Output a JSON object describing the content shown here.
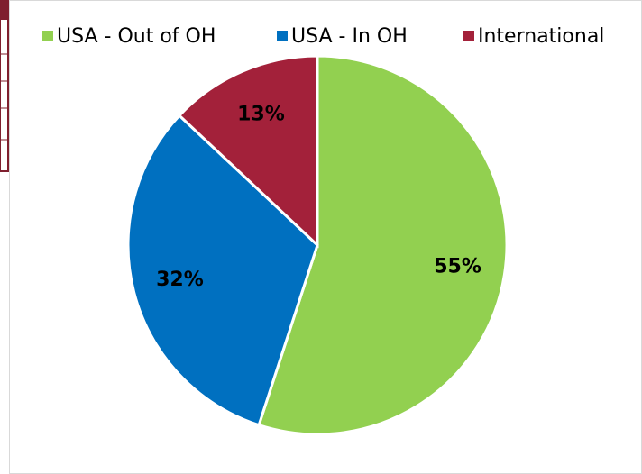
{
  "chart_data": {
    "type": "pie",
    "categories": [
      "USA - Out of OH",
      "USA - In OH",
      "International"
    ],
    "values": [
      55,
      32,
      13
    ],
    "value_labels": [
      "55%",
      "32%",
      "13%"
    ],
    "colors": [
      "#92d050",
      "#0070c0",
      "#a3213a"
    ],
    "legend": "top"
  }
}
